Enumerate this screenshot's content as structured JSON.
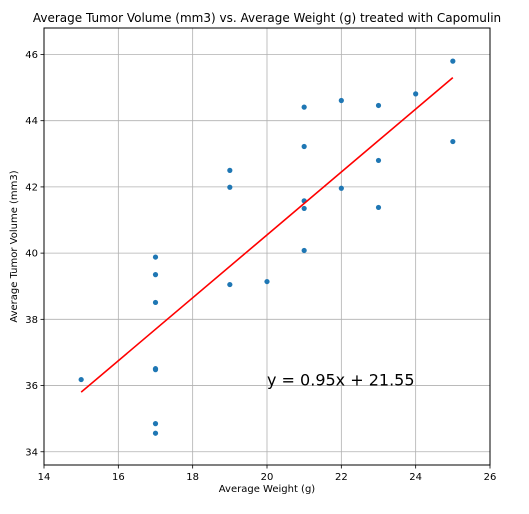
{
  "chart_data": {
    "type": "scatter",
    "title": "Average Tumor Volume (mm3) vs. Average Weight (g) treated with Capomulin",
    "xlabel": "Average Weight (g)",
    "ylabel": "Average Tumor Volume (mm3)",
    "xlim": [
      14,
      26
    ],
    "ylim": [
      33.6,
      46.8
    ],
    "x_ticks": [
      14,
      16,
      18,
      20,
      22,
      24,
      26
    ],
    "y_ticks": [
      34,
      36,
      38,
      40,
      42,
      44,
      46
    ],
    "x_tick_labels": [
      "14",
      "16",
      "18",
      "20",
      "22",
      "24",
      "26"
    ],
    "y_tick_labels": [
      "34",
      "36",
      "38",
      "40",
      "42",
      "44",
      "46"
    ],
    "grid": true,
    "series": [
      {
        "color": "#1f77b4",
        "points": [
          {
            "x": 15,
            "y": 36.18
          },
          {
            "x": 17,
            "y": 39.88
          },
          {
            "x": 17,
            "y": 39.35
          },
          {
            "x": 17,
            "y": 38.51
          },
          {
            "x": 17,
            "y": 36.51
          },
          {
            "x": 17,
            "y": 36.48
          },
          {
            "x": 17,
            "y": 34.85
          },
          {
            "x": 17,
            "y": 34.56
          },
          {
            "x": 19,
            "y": 42.5
          },
          {
            "x": 19,
            "y": 41.99
          },
          {
            "x": 19,
            "y": 39.05
          },
          {
            "x": 20,
            "y": 39.14
          },
          {
            "x": 21,
            "y": 44.41
          },
          {
            "x": 21,
            "y": 43.22
          },
          {
            "x": 21,
            "y": 41.58
          },
          {
            "x": 21,
            "y": 41.35
          },
          {
            "x": 21,
            "y": 40.08
          },
          {
            "x": 22,
            "y": 44.61
          },
          {
            "x": 22,
            "y": 41.96
          },
          {
            "x": 23,
            "y": 44.46
          },
          {
            "x": 23,
            "y": 42.8
          },
          {
            "x": 23,
            "y": 41.38
          },
          {
            "x": 24,
            "y": 44.81
          },
          {
            "x": 25,
            "y": 45.8
          },
          {
            "x": 25,
            "y": 43.37
          }
        ]
      }
    ],
    "regression": {
      "slope": 0.95,
      "intercept": 21.55,
      "x_range": [
        15,
        25
      ],
      "color": "#ff0000",
      "equation_text": "y = 0.95x + 21.55",
      "equation_anchor": {
        "x": 20,
        "y": 36
      }
    }
  }
}
